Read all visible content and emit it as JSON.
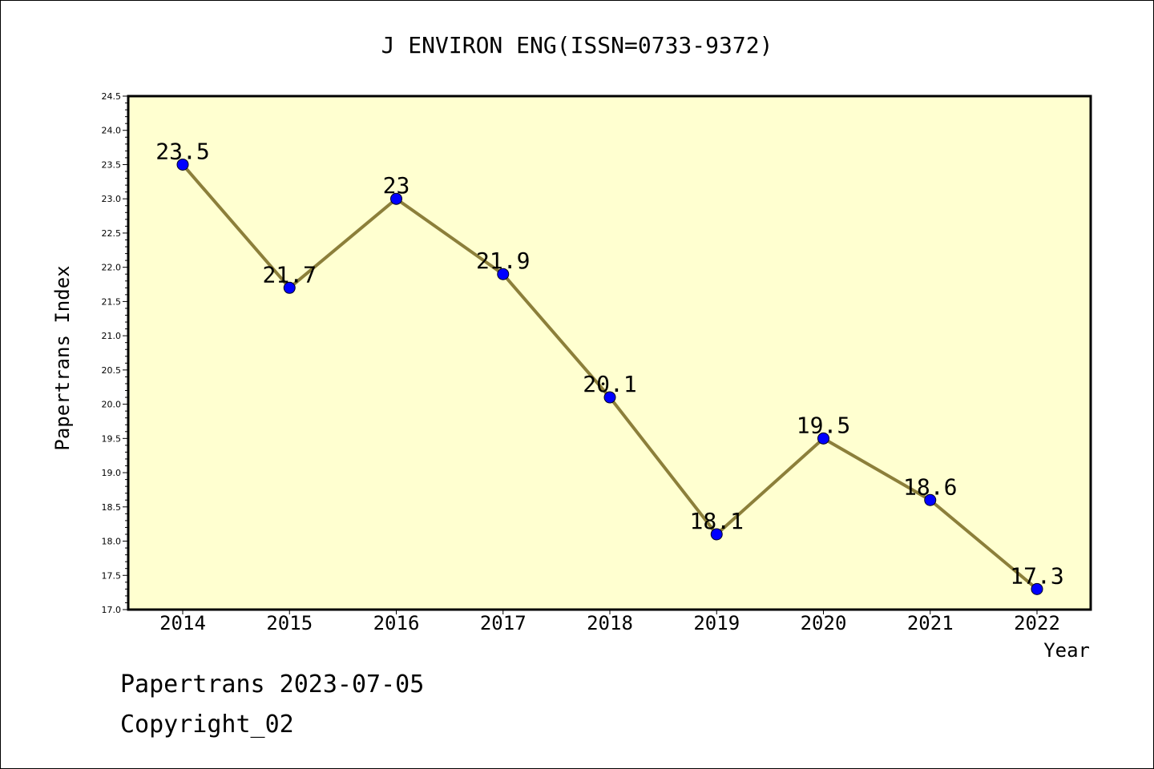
{
  "chart_data": {
    "type": "line",
    "title": "J ENVIRON ENG(ISSN=0733-9372)",
    "xlabel": "Year",
    "ylabel": "Papertrans Index",
    "categories": [
      "2014",
      "2015",
      "2016",
      "2017",
      "2018",
      "2019",
      "2020",
      "2021",
      "2022"
    ],
    "values": [
      23.5,
      21.7,
      23.0,
      21.9,
      20.1,
      18.1,
      19.5,
      18.6,
      17.3
    ],
    "point_labels": [
      "23.5",
      "21.7",
      "23",
      "21.9",
      "20.1",
      "18.1",
      "19.5",
      "18.6",
      "17.3"
    ],
    "ylim": [
      17.0,
      24.5
    ],
    "yticks": [
      "17.0",
      "17.5",
      "18.0",
      "18.5",
      "19.0",
      "19.5",
      "20.0",
      "20.5",
      "21.0",
      "21.5",
      "22.0",
      "22.5",
      "23.0",
      "23.5",
      "24.0",
      "24.5"
    ],
    "grid": false,
    "legend": "none",
    "colors": {
      "plot_background": "#ffffd0",
      "line": "#8c7f3a",
      "marker": "#0000ff"
    }
  },
  "footer": {
    "line1": "Papertrans 2023-07-05",
    "line2": "Copyright_02"
  }
}
